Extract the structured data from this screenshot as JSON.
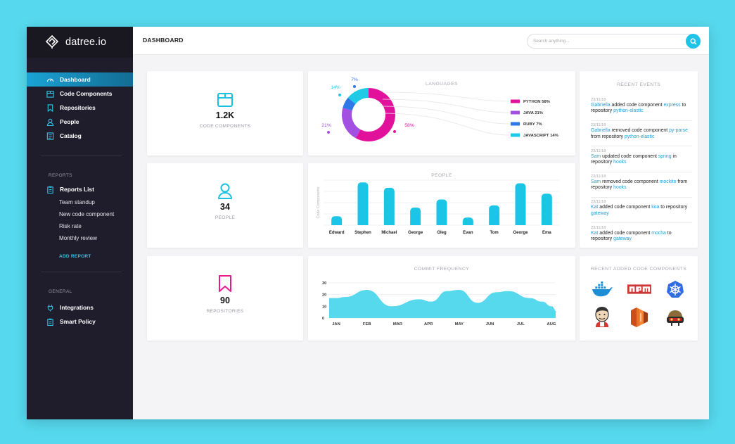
{
  "app": {
    "logo_text": "datree.io"
  },
  "sidebar": {
    "main_items": [
      {
        "label": "Dashboard",
        "icon": "dashboard-icon",
        "active": true
      },
      {
        "label": "Code Components",
        "icon": "box-icon"
      },
      {
        "label": "Repositories",
        "icon": "bookmark-icon"
      },
      {
        "label": "People",
        "icon": "person-icon"
      },
      {
        "label": "Catalog",
        "icon": "catalog-icon"
      }
    ],
    "reports": {
      "section_label": "REPORTS",
      "list_label": "Reports List",
      "items": [
        "Team standup",
        "New code component",
        "Risk rate",
        "Monthly review"
      ],
      "add_label": "ADD REPORT"
    },
    "general": {
      "section_label": "GENERAL",
      "items": [
        {
          "label": "Integrations",
          "icon": "plug-icon"
        },
        {
          "label": "Smart Policy",
          "icon": "clipboard-icon"
        }
      ]
    }
  },
  "header": {
    "title": "DASHBOARD",
    "search_placeholder": "Search anything..."
  },
  "stats": [
    {
      "value": "1.2K",
      "label": "CODE COMPONENTS",
      "icon": "box-icon",
      "color": "#1ac0e2"
    },
    {
      "value": "34",
      "label": "PEOPLE",
      "icon": "person-icon",
      "color": "#1ac0e2"
    },
    {
      "value": "90",
      "label": "REPOSITORIES",
      "icon": "bookmark-icon",
      "color": "#e8188f"
    }
  ],
  "languages": {
    "title": "LANGUAGES",
    "chart_data": {
      "type": "pie",
      "slices": [
        {
          "name": "PYTHON",
          "value": 58,
          "color": "#e2119c",
          "label": "58%",
          "legend": "PYTHON 58%"
        },
        {
          "name": "JAVA",
          "value": 21,
          "color": "#a24fe2",
          "label": "21%",
          "legend": "JAVA 21%"
        },
        {
          "name": "RUBY",
          "value": 7,
          "color": "#3077e8",
          "label": "7%",
          "legend": "RUBY 7%"
        },
        {
          "name": "JAVASCRIPT",
          "value": 14,
          "color": "#1fcae6",
          "label": "14%",
          "legend": "JAVASCRIPT 14%"
        }
      ]
    }
  },
  "people_chart": {
    "title": "PEOPLE",
    "chart_data": {
      "type": "bar",
      "ylabel": "Code Components",
      "categories": [
        "Edward",
        "Stephen",
        "Michael",
        "George",
        "Oleg",
        "Evan",
        "Tom",
        "George",
        "Ema"
      ],
      "values": [
        2,
        9.5,
        8.3,
        3.9,
        5.7,
        1.7,
        4.4,
        9.3,
        7.0
      ],
      "ylim": [
        0,
        10
      ],
      "color": "#1ac5e6"
    }
  },
  "commit_chart": {
    "title": "COMMIT FREQUENCY",
    "chart_data": {
      "type": "area",
      "x": [
        "JAN",
        "FEB",
        "MAR",
        "APR",
        "MAY",
        "JUN",
        "JUL",
        "AUG"
      ],
      "yticks": [
        "0",
        "10",
        "20",
        "30"
      ],
      "ylim": [
        0,
        30
      ],
      "points": [
        [
          0,
          17
        ],
        [
          0.3,
          18
        ],
        [
          1.0,
          24
        ],
        [
          1.8,
          10
        ],
        [
          2.7,
          16
        ],
        [
          3.1,
          14
        ],
        [
          3.6,
          23
        ],
        [
          4.0,
          24
        ],
        [
          4.6,
          13
        ],
        [
          5.2,
          22
        ],
        [
          5.6,
          23
        ],
        [
          6.3,
          17
        ],
        [
          6.7,
          14
        ],
        [
          7.0,
          10
        ],
        [
          7.2,
          5
        ],
        [
          7.5,
          5
        ]
      ],
      "color": "#56d9ec"
    }
  },
  "recent_events": {
    "title": "RECENT EVENTS",
    "items": [
      {
        "time": "23/11/18",
        "user": "Gabriella",
        "action": "added code component",
        "component": "express",
        "preposition": "to repository",
        "repo": "python-elastic"
      },
      {
        "time": "23/11/18",
        "user": "Gabriella",
        "action": "removed code component",
        "component": "py-parse",
        "preposition": "from repository",
        "repo": "python-elastic"
      },
      {
        "time": "23/11/18",
        "user": "Sam",
        "action": "updated code component",
        "component": "spring",
        "preposition": "in repository",
        "repo": "hooks"
      },
      {
        "time": "23/11/18",
        "user": "Sam",
        "action": "removed code component",
        "component": "mockito",
        "preposition": "from repository",
        "repo": "hooks"
      },
      {
        "time": "23/11/18",
        "user": "Kat",
        "action": "added code component",
        "component": "koa",
        "preposition": "to repository",
        "repo": "gateway"
      },
      {
        "time": "23/11/18",
        "user": "Kat",
        "action": "added code component",
        "component": "mocha",
        "preposition": "to repository",
        "repo": "gateway"
      }
    ]
  },
  "recent_components": {
    "title": "RECENT ADDED CODE COMPONENTS",
    "logos": [
      "docker-logo",
      "npm-logo",
      "kubernetes-logo",
      "jenkins-logo",
      "aws-lambda-logo",
      "fluentd-logo"
    ]
  }
}
